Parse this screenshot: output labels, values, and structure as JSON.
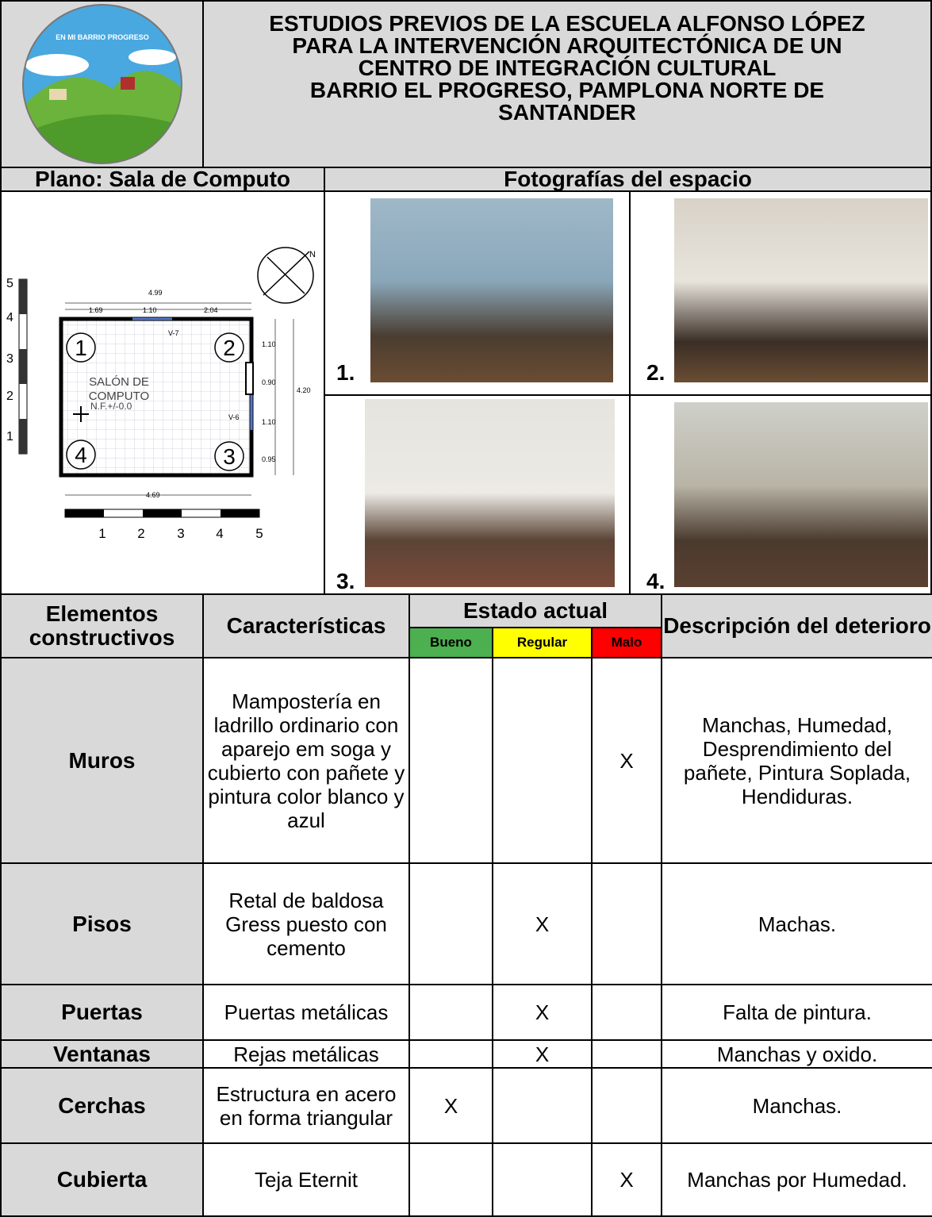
{
  "header": {
    "logo_text": "EN MI BARRIO PROGRESO",
    "title_lines": [
      "ESTUDIOS PREVIOS DE LA ESCUELA ALFONSO LÓPEZ",
      "PARA LA INTERVENCIÓN ARQUITECTÓNICA DE UN",
      "CENTRO DE INTEGRACIÓN CULTURAL",
      "BARRIO EL PROGRESO, PAMPLONA NORTE DE",
      "SANTANDER"
    ]
  },
  "plan": {
    "heading": "Plano: Sala de Computo",
    "room_label": [
      "SALÓN DE",
      "COMPUTO"
    ],
    "level": "N.F.+/-0.0",
    "north": "N",
    "vertical_scale": [
      "5",
      "4",
      "3",
      "2",
      "1"
    ],
    "horizontal_scale": [
      "1",
      "2",
      "3",
      "4",
      "5"
    ],
    "corners": [
      "1",
      "2",
      "3",
      "4"
    ],
    "windows": [
      "V-7",
      "V-6"
    ],
    "dimensions": {
      "top_total": "4.99",
      "top_parts": [
        "1.69",
        "1.10",
        "2.04"
      ],
      "right_parts": [
        "1.10",
        "0.90",
        "1.10",
        "0.95"
      ],
      "right_total": "4.20",
      "bottom_total": "4.69"
    }
  },
  "photos": {
    "heading": "Fotografías del espacio",
    "labels": [
      "1.",
      "2.",
      "3.",
      "4."
    ]
  },
  "table": {
    "headers": {
      "element": "Elementos constructivos",
      "characteristics": "Características",
      "state": "Estado actual",
      "good": "Bueno",
      "regular": "Regular",
      "bad": "Malo",
      "description": "Descripción del deterioro"
    },
    "rows": [
      {
        "element": "Muros",
        "characteristics": "Mampostería en ladrillo ordinario con aparejo em soga y cubierto con pañete y pintura color blanco y azul",
        "bad": "X",
        "description": "Manchas, Humedad, Desprendimiento del pañete, Pintura Soplada, Hendiduras."
      },
      {
        "element": "Pisos",
        "characteristics": "Retal de baldosa Gress puesto con cemento",
        "regular": "X",
        "description": "Machas."
      },
      {
        "element": "Puertas",
        "characteristics": "Puertas metálicas",
        "regular": "X",
        "description": "Falta de pintura."
      },
      {
        "element": "Ventanas",
        "characteristics": "Rejas metálicas",
        "regular": "X",
        "description": "Manchas y oxido."
      },
      {
        "element": "Cerchas",
        "characteristics": "Estructura en acero en forma triangular",
        "good": "X",
        "description": "Manchas."
      },
      {
        "element": "Cubierta",
        "characteristics": "Teja Eternit",
        "bad": "X",
        "description": "Manchas por Humedad."
      }
    ]
  }
}
